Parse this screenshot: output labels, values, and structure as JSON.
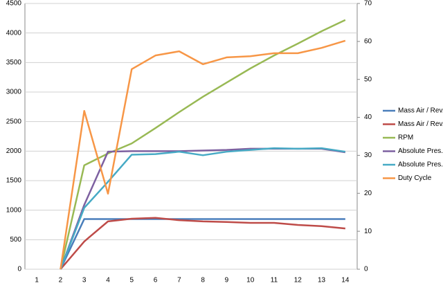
{
  "chart_data": {
    "type": "line",
    "categories": [
      "1",
      "2",
      "3",
      "4",
      "5",
      "6",
      "7",
      "8",
      "9",
      "10",
      "11",
      "12",
      "13",
      "14"
    ],
    "series": [
      {
        "name": "Mass Air / Rev.",
        "color": "#4a7ebb",
        "values": [
          null,
          0,
          850,
          850,
          850,
          850,
          850,
          850,
          850,
          850,
          850,
          850,
          850,
          850
        ]
      },
      {
        "name": "Mass Air / Rev.",
        "color": "#be4b48",
        "values": [
          null,
          0,
          470,
          810,
          855,
          870,
          830,
          810,
          800,
          785,
          785,
          750,
          730,
          690
        ]
      },
      {
        "name": "RPM",
        "color": "#98b954",
        "values": [
          null,
          0,
          1760,
          1960,
          2130,
          2390,
          2660,
          2920,
          3160,
          3400,
          3620,
          3820,
          4030,
          4220
        ]
      },
      {
        "name": "Absolute Pres.",
        "color": "#7d60a0",
        "values": [
          null,
          0,
          1090,
          1990,
          2000,
          2000,
          2000,
          2010,
          2020,
          2040,
          2040,
          2040,
          2040,
          1980
        ]
      },
      {
        "name": "Absolute Pres.",
        "color": "#46aac5",
        "values": [
          null,
          0,
          1040,
          1480,
          1940,
          1950,
          1990,
          1930,
          1990,
          2020,
          2050,
          2040,
          2050,
          1990
        ]
      },
      {
        "name": "Duty Cycle",
        "color": "#f79646",
        "axis": "y2",
        "values": [
          null,
          0,
          41.7,
          19.9,
          52.7,
          56.3,
          57.4,
          54,
          55.8,
          56.1,
          56.9,
          56.9,
          58.3,
          60.2
        ]
      }
    ],
    "ylim": [
      0,
      4500
    ],
    "yticks": [
      0,
      500,
      1000,
      1500,
      2000,
      2500,
      3000,
      3500,
      4000,
      4500
    ],
    "y2lim": [
      0,
      70
    ],
    "y2ticks": [
      0,
      10,
      20,
      30,
      40,
      50,
      60,
      70
    ],
    "grid": true,
    "legend": "right"
  }
}
